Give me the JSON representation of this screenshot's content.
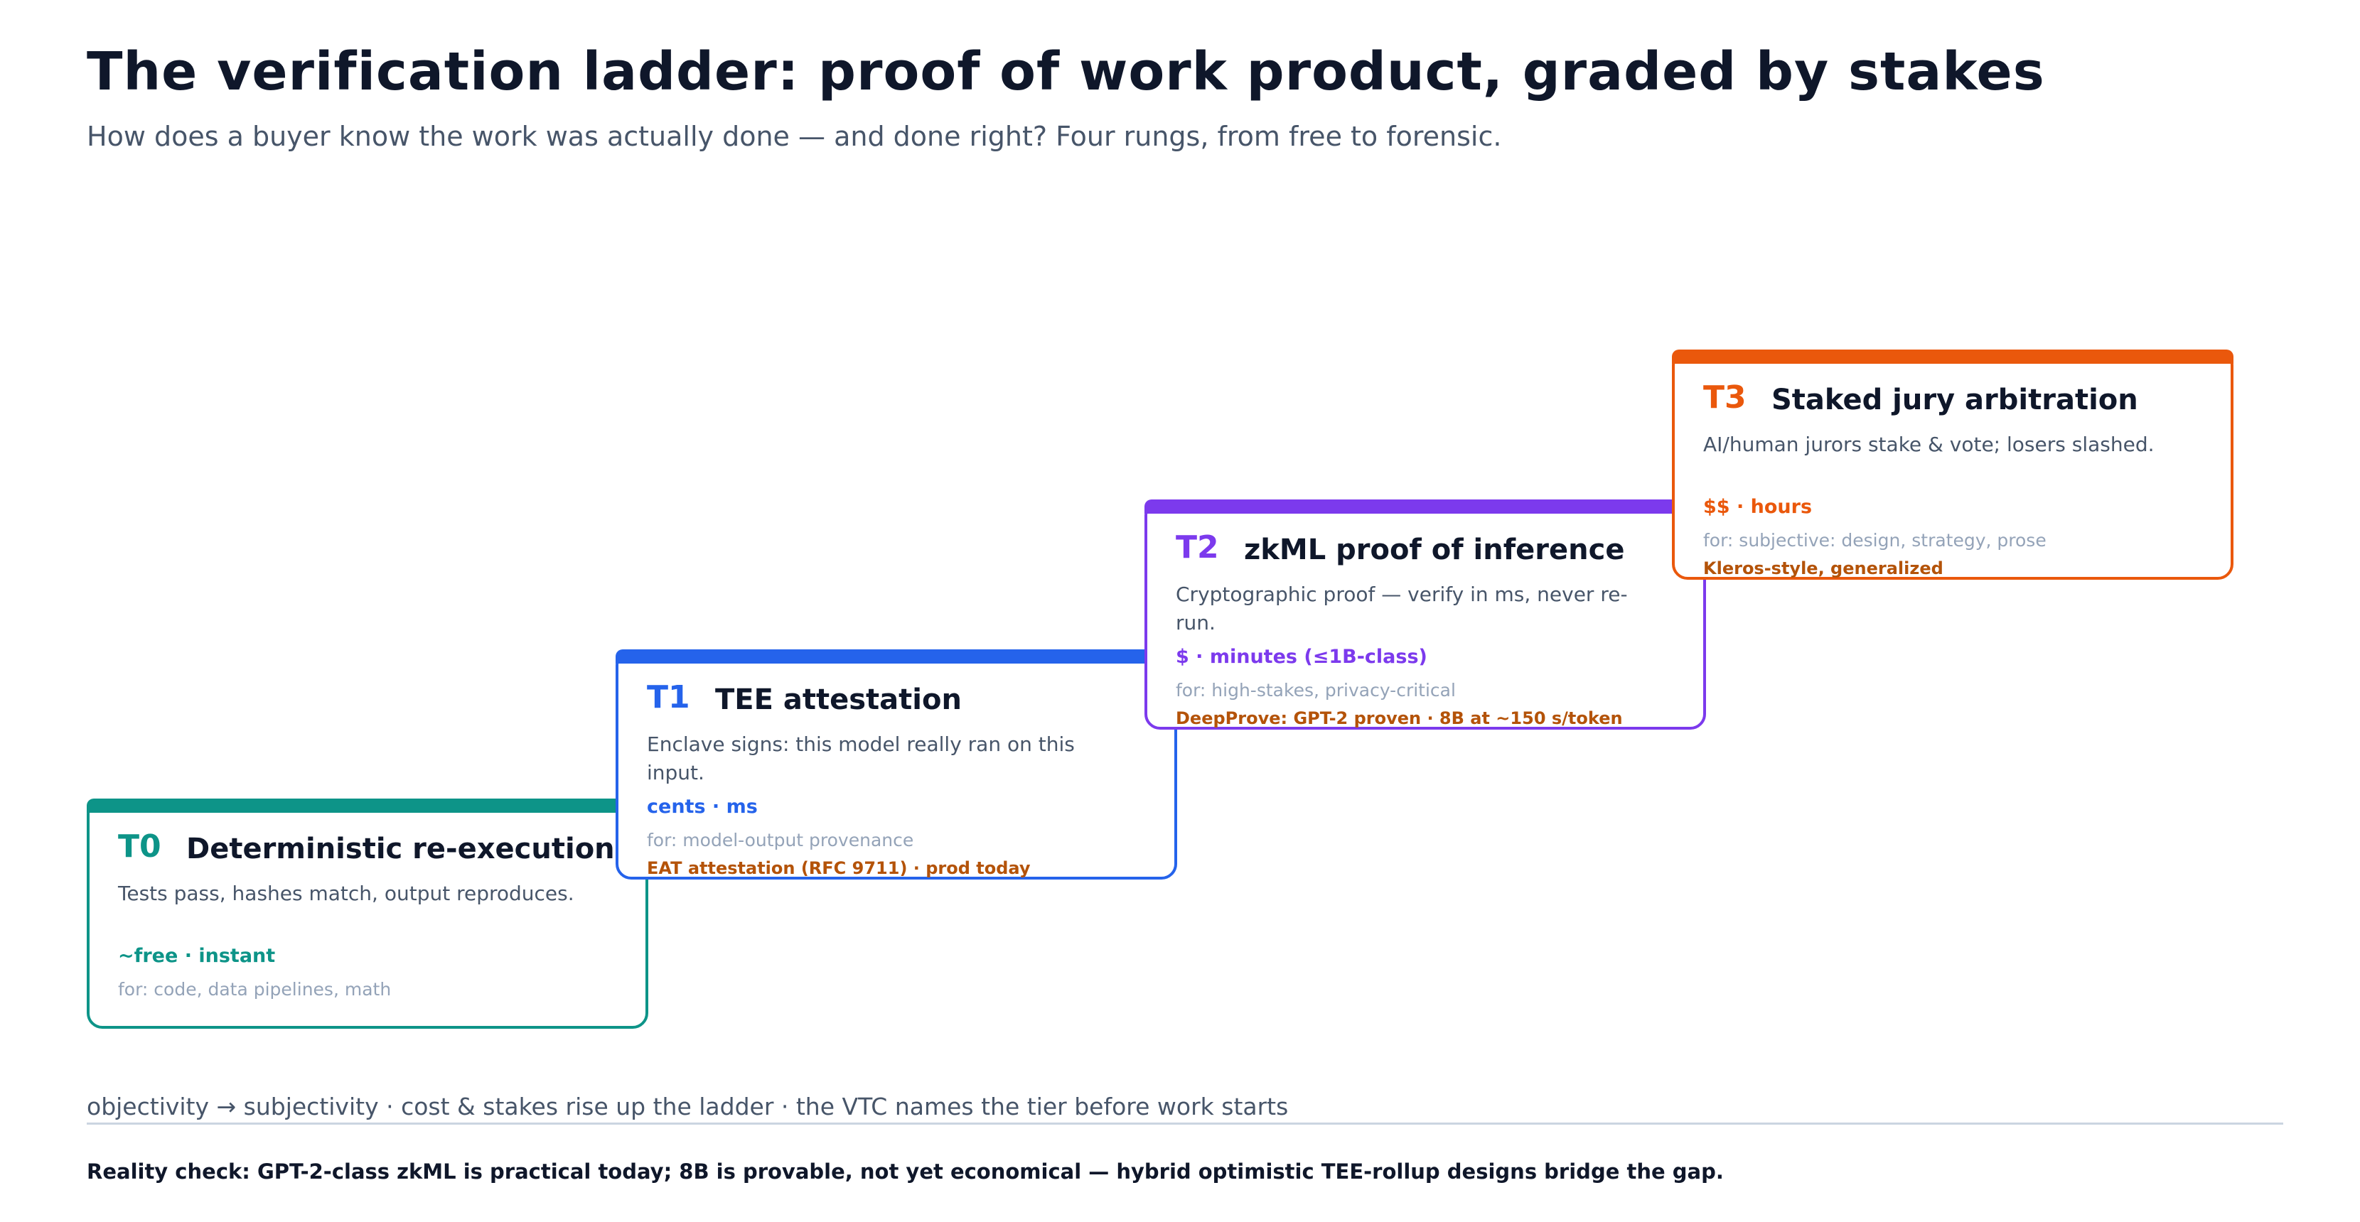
{
  "title": "The verification ladder: proof of work product, graded by stakes",
  "subtitle": "How does a buyer know the work was actually done — and done right? Four rungs, from free to forensic.",
  "rungs": [
    {
      "tier": "T0",
      "name": "Deterministic re-execution",
      "description": "Tests pass, hashes match, output reproduces.",
      "cost": "~free · instant",
      "for": "for: code, data pipelines, math",
      "proof": "",
      "color": "#0d9488"
    },
    {
      "tier": "T1",
      "name": "TEE attestation",
      "description": "Enclave signs: this model really ran on this input.",
      "cost": "cents · ms",
      "for": "for: model-output provenance",
      "proof": "EAT attestation (RFC 9711) · prod today",
      "color": "#2563eb"
    },
    {
      "tier": "T2",
      "name": "zkML proof of inference",
      "description": "Cryptographic proof — verify in ms, never re-run.",
      "cost": "$ · minutes (≤1B-class)",
      "for": "for: high-stakes, privacy-critical",
      "proof": "DeepProve: GPT-2 proven · 8B at ~150 s/token",
      "color": "#7c3aed"
    },
    {
      "tier": "T3",
      "name": "Staked jury arbitration",
      "description": "AI/human jurors stake & vote; losers slashed.",
      "cost": "$$ · hours",
      "for": "for: subjective: design, strategy, prose",
      "proof": "Kleros-style, generalized",
      "color": "#ea580c"
    }
  ],
  "footer": "objectivity → subjectivity · cost & stakes rise up the ladder · the VTC names the tier before work starts",
  "reality_check": "Reality check: GPT-2-class zkML is practical today; 8B is provable, not yet economical — hybrid optimistic TEE-rollup designs bridge the gap."
}
